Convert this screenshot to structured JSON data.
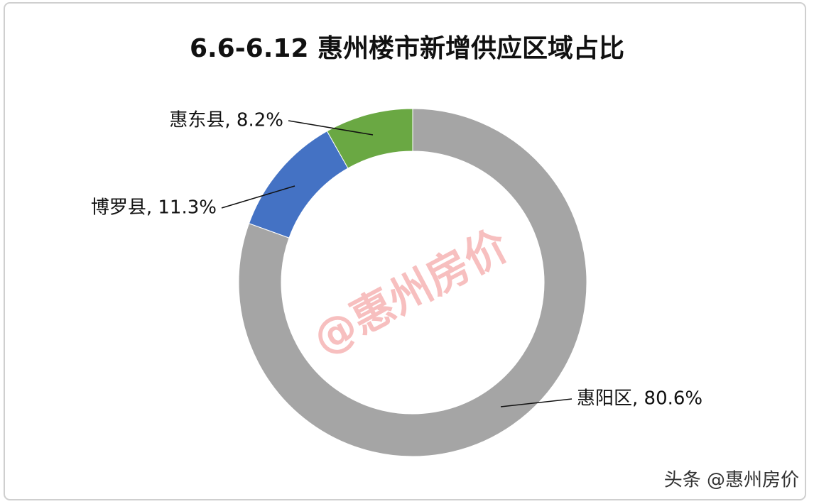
{
  "chart_data": {
    "type": "donut",
    "title": "6.6-6.12 惠州楼市新增供应区域占比",
    "values": [
      80.6,
      11.3,
      8.2
    ],
    "value_labels": [
      "惠阳区, 80.6%",
      "博罗县, 11.3%",
      "惠东县, 8.2%"
    ],
    "colors": [
      "#a5a5a5",
      "#4472c4",
      "#6aa843"
    ]
  },
  "watermark": "@惠州房价",
  "footer": "头条 @惠州房价"
}
